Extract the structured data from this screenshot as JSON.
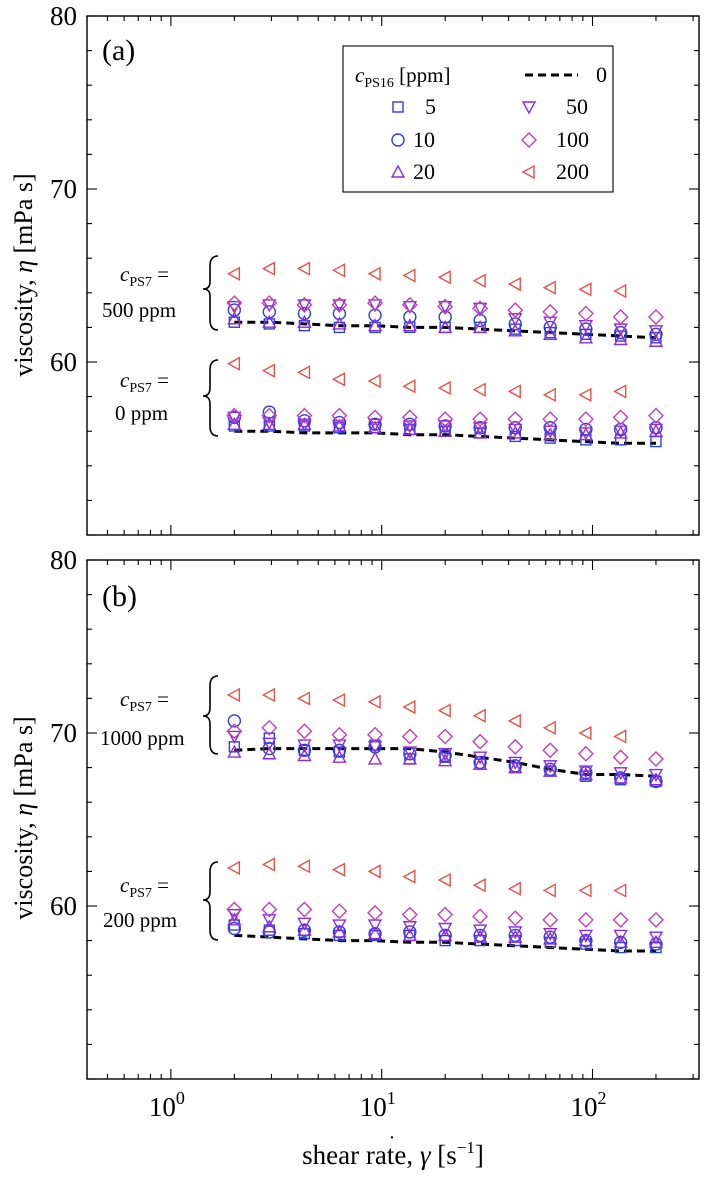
{
  "chart_data": [
    {
      "type": "scatter",
      "panel_label": "(a)",
      "ylabel_main": "viscosity, ",
      "ylabel_symbol": "η",
      "ylabel_unit": " [mPa s]",
      "xlabel_main": "shear rate, ",
      "xlabel_symbol": "γ",
      "xlabel_unit_open": " [s",
      "xlabel_unit_exp": "−1",
      "xlabel_unit_close": "]",
      "xscale": "log",
      "xlim": [
        0.4,
        320
      ],
      "ylim": [
        50,
        80
      ],
      "yticks": [
        {
          "v": 60,
          "t": "60"
        },
        {
          "v": 70,
          "t": "70"
        },
        {
          "v": 80,
          "t": "80"
        }
      ],
      "xticks": [
        {
          "v": 1,
          "base": "10",
          "exp": "0"
        },
        {
          "v": 10,
          "base": "10",
          "exp": "1"
        },
        {
          "v": 100,
          "base": "10",
          "exp": "2"
        }
      ],
      "legend": {
        "title_var": "c",
        "title_sub": "PS16",
        "title_unit": " [ppm]",
        "entries": [
          {
            "key": "0",
            "label": "0",
            "marker": "dash"
          },
          {
            "key": "5",
            "label": "5",
            "marker": "square"
          },
          {
            "key": "50",
            "label": "50",
            "marker": "tri-down"
          },
          {
            "key": "10",
            "label": "10",
            "marker": "circle"
          },
          {
            "key": "100",
            "label": "100",
            "marker": "diamond"
          },
          {
            "key": "20",
            "label": "20",
            "marker": "tri-up"
          },
          {
            "key": "200",
            "label": "200",
            "marker": "tri-left"
          }
        ]
      },
      "x": [
        2,
        2.93,
        4.3,
        6.3,
        9.3,
        13.6,
        20,
        29.3,
        43,
        63,
        93,
        136,
        200
      ],
      "groups": [
        {
          "label_var": "c",
          "label_sub": "PS7",
          "label_eq": " =",
          "label_value": "500 ppm",
          "series": [
            {
              "key": "0",
              "name": "0",
              "values": [
                62.3,
                62.3,
                62.2,
                62.1,
                62.1,
                62.0,
                62.0,
                61.9,
                61.8,
                61.7,
                61.6,
                61.5,
                61.4
              ]
            },
            {
              "key": "5",
              "name": "5",
              "values": [
                62.3,
                62.2,
                62.1,
                62.0,
                62.0,
                62.0,
                62.0,
                62.0,
                61.9,
                61.7,
                61.6,
                61.5,
                61.4
              ]
            },
            {
              "key": "10",
              "name": "10",
              "values": [
                63.0,
                62.9,
                62.8,
                62.8,
                62.7,
                62.6,
                62.6,
                62.4,
                62.2,
                62.0,
                61.9,
                61.7,
                61.6
              ]
            },
            {
              "key": "20",
              "name": "20",
              "values": [
                62.5,
                62.3,
                62.3,
                62.2,
                62.1,
                62.1,
                62.0,
                62.0,
                61.8,
                61.6,
                61.4,
                61.3,
                61.2
              ]
            },
            {
              "key": "50",
              "name": "50",
              "values": [
                63.2,
                63.3,
                63.3,
                63.3,
                63.3,
                63.2,
                63.2,
                63.1,
                62.5,
                62.3,
                62.1,
                61.9,
                61.8
              ]
            },
            {
              "key": "100",
              "name": "100",
              "values": [
                63.4,
                63.4,
                63.3,
                63.3,
                63.4,
                63.3,
                63.2,
                63.1,
                63.0,
                62.9,
                62.8,
                62.6,
                62.6
              ]
            },
            {
              "key": "200",
              "name": "200",
              "values": [
                65.1,
                65.4,
                65.4,
                65.3,
                65.1,
                65.0,
                64.9,
                64.7,
                64.5,
                64.3,
                64.2,
                64.1,
                null
              ]
            }
          ]
        },
        {
          "label_var": "c",
          "label_sub": "PS7",
          "label_eq": " =",
          "label_value": "0 ppm",
          "series": [
            {
              "key": "0",
              "name": "0",
              "values": [
                56.0,
                56.0,
                55.9,
                55.9,
                55.9,
                55.8,
                55.8,
                55.7,
                55.6,
                55.5,
                55.4,
                55.3,
                55.3
              ]
            },
            {
              "key": "5",
              "name": "5",
              "values": [
                56.3,
                56.3,
                56.3,
                56.2,
                56.2,
                56.1,
                56.0,
                55.9,
                55.7,
                55.6,
                55.5,
                55.5,
                55.4
              ]
            },
            {
              "key": "10",
              "name": "10",
              "values": [
                56.8,
                57.1,
                56.6,
                56.5,
                56.4,
                56.4,
                56.3,
                56.2,
                56.2,
                56.2,
                56.1,
                56.1,
                56.2
              ]
            },
            {
              "key": "20",
              "name": "20",
              "values": [
                56.4,
                56.4,
                56.4,
                56.3,
                56.2,
                56.1,
                56.0,
                55.9,
                55.9,
                55.8,
                55.8,
                55.9,
                56.0
              ]
            },
            {
              "key": "50",
              "name": "50",
              "values": [
                56.8,
                56.5,
                56.4,
                56.3,
                56.4,
                56.3,
                56.3,
                56.2,
                56.1,
                56.0,
                55.9,
                56.0,
                56.1
              ]
            },
            {
              "key": "100",
              "name": "100",
              "values": [
                56.9,
                56.9,
                56.9,
                56.9,
                56.8,
                56.8,
                56.7,
                56.7,
                56.7,
                56.7,
                56.7,
                56.8,
                56.9
              ]
            },
            {
              "key": "200",
              "name": "200",
              "values": [
                59.9,
                59.5,
                59.4,
                59.0,
                58.9,
                58.6,
                58.5,
                58.4,
                58.3,
                58.1,
                58.1,
                58.3,
                null
              ]
            }
          ]
        }
      ]
    },
    {
      "type": "scatter",
      "panel_label": "(b)",
      "ylabel_main": "viscosity, ",
      "ylabel_symbol": "η",
      "ylabel_unit": " [mPa s]",
      "xscale": "log",
      "xlim": [
        0.4,
        320
      ],
      "ylim": [
        50,
        80
      ],
      "yticks": [
        {
          "v": 60,
          "t": "60"
        },
        {
          "v": 70,
          "t": "70"
        },
        {
          "v": 80,
          "t": "80"
        }
      ],
      "xticks": [
        {
          "v": 1,
          "base": "10",
          "exp": "0"
        },
        {
          "v": 10,
          "base": "10",
          "exp": "1"
        },
        {
          "v": 100,
          "base": "10",
          "exp": "2"
        }
      ],
      "x": [
        2,
        2.93,
        4.3,
        6.3,
        9.3,
        13.6,
        20,
        29.3,
        43,
        63,
        93,
        136,
        200
      ],
      "groups": [
        {
          "label_var": "c",
          "label_sub": "PS7",
          "label_eq": " =",
          "label_value": "1000 ppm",
          "series": [
            {
              "key": "0",
              "name": "0",
              "values": [
                69.0,
                69.1,
                69.1,
                69.1,
                69.1,
                69.1,
                68.9,
                68.6,
                68.3,
                67.9,
                67.6,
                67.6,
                67.5
              ]
            },
            {
              "key": "5",
              "name": "5",
              "values": [
                69.2,
                69.7,
                69.0,
                68.9,
                69.3,
                68.5,
                68.6,
                68.2,
                68.0,
                67.8,
                67.5,
                67.3,
                67.2
              ]
            },
            {
              "key": "10",
              "name": "10",
              "values": [
                70.7,
                69.1,
                69.0,
                69.0,
                69.2,
                68.8,
                68.7,
                68.3,
                68.1,
                67.9,
                67.7,
                67.4,
                67.2
              ]
            },
            {
              "key": "20",
              "name": "20",
              "values": [
                68.9,
                68.8,
                68.7,
                68.6,
                68.5,
                68.5,
                68.4,
                68.2,
                68.0,
                67.8,
                67.6,
                67.4,
                67.3
              ]
            },
            {
              "key": "50",
              "name": "50",
              "values": [
                69.8,
                69.4,
                69.3,
                69.3,
                69.2,
                68.9,
                68.8,
                68.6,
                68.3,
                68.1,
                67.8,
                67.7,
                67.6
              ]
            },
            {
              "key": "100",
              "name": "100",
              "values": [
                70.1,
                70.3,
                70.1,
                69.9,
                69.9,
                69.8,
                69.8,
                69.5,
                69.2,
                69.0,
                68.8,
                68.6,
                68.5
              ]
            },
            {
              "key": "200",
              "name": "200",
              "values": [
                72.2,
                72.2,
                72.0,
                71.9,
                71.8,
                71.5,
                71.3,
                71.0,
                70.7,
                70.3,
                70.0,
                69.8,
                null
              ]
            }
          ]
        },
        {
          "label_var": "c",
          "label_sub": "PS7",
          "label_eq": " =",
          "label_value": "200 ppm",
          "series": [
            {
              "key": "0",
              "name": "0",
              "values": [
                58.3,
                58.2,
                58.1,
                58.0,
                58.0,
                57.9,
                57.9,
                57.8,
                57.7,
                57.6,
                57.5,
                57.4,
                57.4
              ]
            },
            {
              "key": "5",
              "name": "5",
              "values": [
                58.9,
                58.6,
                58.4,
                58.3,
                58.3,
                58.3,
                58.0,
                58.0,
                58.0,
                57.9,
                57.8,
                57.6,
                57.6
              ]
            },
            {
              "key": "10",
              "name": "10",
              "values": [
                58.7,
                58.5,
                58.6,
                58.5,
                58.4,
                58.5,
                58.3,
                58.3,
                58.3,
                58.2,
                58.0,
                57.9,
                57.8
              ]
            },
            {
              "key": "20",
              "name": "20",
              "values": [
                59.2,
                58.8,
                58.6,
                58.5,
                58.4,
                58.3,
                58.3,
                58.2,
                58.2,
                58.1,
                58.0,
                57.9,
                57.9
              ]
            },
            {
              "key": "50",
              "name": "50",
              "values": [
                59.5,
                59.2,
                59.0,
                58.9,
                58.9,
                58.8,
                58.7,
                58.6,
                58.5,
                58.4,
                58.3,
                58.3,
                58.2
              ]
            },
            {
              "key": "100",
              "name": "100",
              "values": [
                59.8,
                59.8,
                59.8,
                59.7,
                59.6,
                59.5,
                59.5,
                59.4,
                59.3,
                59.2,
                59.2,
                59.2,
                59.2
              ]
            },
            {
              "key": "200",
              "name": "200",
              "values": [
                62.2,
                62.4,
                62.3,
                62.1,
                62.0,
                61.7,
                61.5,
                61.2,
                61.0,
                60.9,
                60.9,
                60.9,
                null
              ]
            }
          ]
        }
      ]
    }
  ]
}
